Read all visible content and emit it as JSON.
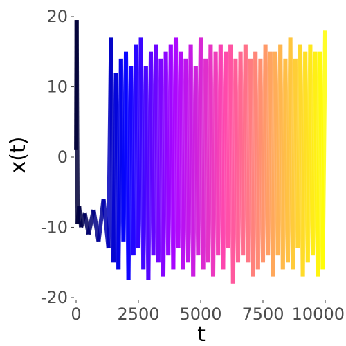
{
  "chart_data": {
    "type": "line",
    "title": "",
    "xlabel": "t",
    "ylabel": "x(t)",
    "xlim": [
      0,
      10000
    ],
    "ylim": [
      -20,
      20
    ],
    "x_ticks": [
      0,
      2500,
      5000,
      7500,
      10000
    ],
    "x_tick_labels": [
      "0",
      "2500",
      "5000",
      "7500",
      "10000"
    ],
    "y_ticks": [
      -20,
      -10,
      0,
      10,
      20
    ],
    "y_tick_labels": [
      "-20",
      "-10",
      "0",
      "10",
      "20"
    ],
    "grid": false,
    "legend": "none",
    "color_gradient": [
      "#000033",
      "#0000ff",
      "#aa00ff",
      "#ff44aa",
      "#ffaa55",
      "#ffff00"
    ],
    "series": [
      {
        "x": [
          0,
          20,
          60,
          120,
          200,
          350,
          500,
          700,
          900,
          1100,
          1300,
          1400,
          1500,
          1600,
          1700,
          1800,
          1900,
          2000,
          2100,
          2200,
          2300,
          2400,
          2500,
          2600,
          2700,
          2800,
          2900,
          3000,
          3100,
          3200,
          3300,
          3400,
          3500,
          3600,
          3700,
          3800,
          3900,
          4000,
          4100,
          4200,
          4300,
          4400,
          4500,
          4600,
          4700,
          4800,
          4900,
          5000,
          5100,
          5200,
          5300,
          5400,
          5500,
          5600,
          5700,
          5800,
          5900,
          6000,
          6100,
          6200,
          6300,
          6400,
          6500,
          6600,
          6700,
          6800,
          6900,
          7000,
          7100,
          7200,
          7300,
          7400,
          7500,
          7600,
          7700,
          7800,
          7900,
          8000,
          8100,
          8200,
          8300,
          8400,
          8500,
          8600,
          8700,
          8800,
          8900,
          9000,
          9100,
          9200,
          9300,
          9400,
          9500,
          9600,
          9700,
          9800,
          9900,
          10000
        ],
        "y": [
          1,
          19.5,
          -9.5,
          -7,
          -10,
          -8,
          -11,
          -7.5,
          -12,
          -6,
          -13,
          17,
          -15,
          12,
          -16,
          14,
          -12,
          15,
          -17.5,
          13,
          -14,
          16,
          -13,
          17,
          -16,
          13,
          -17.5,
          15,
          -14,
          16,
          -15,
          14,
          -17,
          15,
          -14,
          16,
          -16,
          17,
          -13,
          15,
          -16,
          14,
          -15,
          16,
          -17,
          13,
          -14,
          17,
          -16,
          14,
          -15,
          16,
          -17,
          15,
          -14,
          16,
          -16,
          15,
          -13,
          16,
          -18,
          14,
          -15,
          15,
          -14,
          16,
          -15,
          14,
          -17,
          15,
          -16,
          14,
          -15,
          16,
          -14,
          15,
          -17,
          15,
          -14,
          16,
          -16,
          14,
          -15,
          17,
          -16,
          14,
          -13,
          16,
          -17,
          15,
          -15,
          16,
          -14,
          15,
          -17,
          15,
          -16,
          18
        ]
      }
    ]
  }
}
